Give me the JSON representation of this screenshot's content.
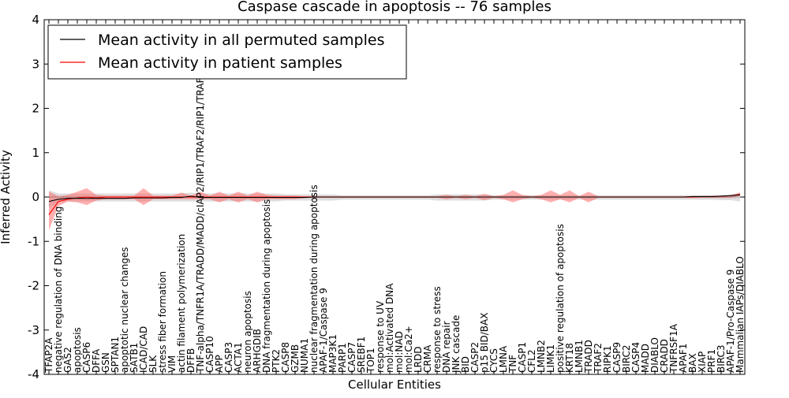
{
  "chart_data": {
    "type": "line",
    "title": "Caspase cascade in apoptosis -- 76 samples",
    "xlabel": "Cellular Entities",
    "ylabel": "Inferred Activity",
    "ylim": [
      -4,
      4
    ],
    "yticks": [
      -4,
      -3,
      -2,
      -1,
      0,
      1,
      2,
      3,
      4
    ],
    "legend": {
      "position": "top-left",
      "entries": [
        {
          "label": "Mean activity in all permuted samples",
          "color": "#000000"
        },
        {
          "label": "Mean activity in patient samples",
          "color": "#ff0000"
        }
      ]
    },
    "categories": [
      "TFAP2A",
      "negative regulation of DNA binding",
      "GAS2",
      "apoptosis",
      "CASP6",
      "DFFA",
      "GSN",
      "SPTAN1",
      "apoptotic nuclear changes",
      "SATB1",
      "ICAD/CAD",
      "SLK",
      "stress fiber formation",
      "VIM",
      "actin filament polymerization",
      "DFFB",
      "TNF-alpha/TNFR1A/TRADD/MADD/cIAP2/RIP1/TRAF2/RIP1/TRAF2/RAIDD",
      "CASP10",
      "APP",
      "CASP3",
      "ACTA1",
      "neuron apoptosis",
      "ARHGDIB",
      "DNA fragmentation during apoptosis",
      "PTK2",
      "CASP8",
      "GZMB",
      "NUMA1",
      "nuclear fragmentation during apoptosis",
      "APAF-1/Caspase 9",
      "MAP3K1",
      "PARP1",
      "CASP7",
      "SREBF1",
      "TOP1",
      "response to UV",
      "mol:Activated DNA",
      "mol:NAD",
      "mol:Ca2+",
      "LRDD",
      "CRMA",
      "response to stress",
      "DNA repair",
      "JNK cascade",
      "BID",
      "CASP2",
      "p15 BID/BAX",
      "CYCS",
      "LMNA",
      "TNF",
      "CASP1",
      "CFL2",
      "LMNB2",
      "LIMK1",
      "positive regulation of apoptosis",
      "KRT18",
      "LMNB1",
      "TRADD",
      "TRAF2",
      "RIPK1",
      "CASP9",
      "BIRC2",
      "CASP4",
      "MADD",
      "DIABLO",
      "CRADD",
      "TNFRSF1A",
      "APAF1",
      "BAX",
      "XIAP",
      "PRF1",
      "BIRC3",
      "APAF-1/Pro-Caspase 9",
      "Mammalian IAPs/DIABLO"
    ],
    "series": [
      {
        "name": "Mean activity in all permuted samples",
        "color": "#000000",
        "values": [
          -0.1,
          -0.05,
          -0.03,
          -0.03,
          -0.03,
          -0.03,
          -0.03,
          -0.03,
          -0.03,
          -0.02,
          -0.02,
          -0.02,
          -0.02,
          -0.01,
          -0.01,
          0.02,
          -0.01,
          -0.01,
          -0.01,
          -0.01,
          -0.01,
          -0.01,
          -0.01,
          -0.01,
          -0.01,
          -0.01,
          -0.01,
          -0.01,
          0,
          0,
          0,
          0,
          0,
          0,
          0,
          0,
          0,
          0,
          0,
          0,
          0,
          0,
          0,
          0,
          0,
          0,
          0,
          0,
          0,
          0,
          0,
          0,
          0,
          0,
          0,
          0,
          0,
          0,
          0,
          0,
          0,
          0,
          0,
          0,
          0,
          0,
          0,
          0,
          0.01,
          0.01,
          0.01,
          0.02,
          0.03,
          0.05
        ],
        "band_low": [
          -0.25,
          -0.12,
          -0.1,
          -0.1,
          -0.1,
          -0.1,
          -0.1,
          -0.1,
          -0.1,
          -0.1,
          -0.1,
          -0.1,
          -0.1,
          -0.1,
          -0.1,
          -0.1,
          -0.1,
          -0.1,
          -0.1,
          -0.1,
          -0.1,
          -0.1,
          -0.1,
          -0.1,
          -0.1,
          -0.08,
          -0.08,
          -0.08,
          -0.08,
          -0.08,
          -0.08,
          -0.06,
          -0.06,
          -0.06,
          -0.06,
          -0.06,
          -0.06,
          -0.06,
          -0.06,
          -0.06,
          -0.06,
          -0.08,
          -0.08,
          -0.08,
          -0.08,
          -0.08,
          -0.08,
          -0.06,
          -0.06,
          -0.06,
          -0.06,
          -0.06,
          -0.06,
          -0.06,
          -0.06,
          -0.06,
          -0.06,
          -0.06,
          -0.06,
          -0.06,
          -0.06,
          -0.06,
          -0.06,
          -0.06,
          -0.06,
          -0.06,
          -0.06,
          -0.06,
          -0.06,
          -0.06,
          -0.06,
          -0.07,
          -0.07,
          -0.1
        ],
        "band_high": [
          0.15,
          0.08,
          0.08,
          0.08,
          0.08,
          0.08,
          0.08,
          0.08,
          0.08,
          0.08,
          0.08,
          0.08,
          0.08,
          0.08,
          0.08,
          0.1,
          0.08,
          0.08,
          0.08,
          0.08,
          0.08,
          0.08,
          0.08,
          0.08,
          0.08,
          0.06,
          0.06,
          0.06,
          0.06,
          0.06,
          0.06,
          0.04,
          0.04,
          0.04,
          0.04,
          0.04,
          0.04,
          0.04,
          0.04,
          0.04,
          0.04,
          0.06,
          0.06,
          0.06,
          0.06,
          0.06,
          0.06,
          0.04,
          0.04,
          0.04,
          0.04,
          0.04,
          0.04,
          0.04,
          0.04,
          0.04,
          0.04,
          0.04,
          0.04,
          0.04,
          0.04,
          0.04,
          0.04,
          0.04,
          0.04,
          0.04,
          0.04,
          0.04,
          0.04,
          0.04,
          0.04,
          0.05,
          0.06,
          0.1
        ]
      },
      {
        "name": "Mean activity in patient samples",
        "color": "#ff0000",
        "values": [
          -0.4,
          -0.1,
          -0.05,
          -0.02,
          0,
          -0.02,
          0,
          0,
          0,
          0,
          0,
          0,
          0,
          0,
          0,
          0,
          0,
          0,
          0,
          0,
          0,
          0,
          0,
          0,
          0,
          0,
          0,
          0,
          0,
          0,
          0,
          0,
          0,
          0,
          0,
          0,
          0,
          0,
          0,
          0,
          0,
          0,
          0,
          0,
          0,
          0,
          0,
          0,
          0,
          0,
          0,
          0,
          0,
          0,
          0,
          0,
          0,
          0,
          0,
          0,
          0,
          0,
          0,
          0,
          0,
          0,
          0,
          0,
          0,
          0.01,
          0.01,
          0.02,
          0.03,
          0.06
        ],
        "band_low": [
          -0.75,
          -0.2,
          -0.1,
          -0.12,
          -0.18,
          -0.08,
          -0.05,
          -0.05,
          -0.05,
          -0.05,
          -0.18,
          -0.05,
          -0.05,
          -0.05,
          -0.05,
          -0.05,
          -0.05,
          -0.05,
          -0.12,
          -0.05,
          -0.12,
          -0.05,
          -0.12,
          -0.05,
          -0.05,
          -0.05,
          -0.05,
          -0.02,
          -0.02,
          -0.02,
          -0.02,
          -0.02,
          -0.02,
          -0.02,
          -0.02,
          -0.02,
          -0.02,
          -0.02,
          -0.02,
          -0.02,
          -0.02,
          -0.02,
          -0.05,
          -0.02,
          -0.05,
          -0.02,
          -0.07,
          -0.02,
          -0.05,
          -0.12,
          -0.05,
          -0.02,
          -0.05,
          -0.12,
          -0.05,
          -0.12,
          -0.02,
          -0.12,
          -0.02,
          -0.02,
          -0.02,
          -0.02,
          -0.02,
          -0.02,
          -0.02,
          -0.02,
          -0.02,
          -0.02,
          -0.02,
          -0.02,
          -0.02,
          -0.02,
          -0.02,
          0.02
        ],
        "band_high": [
          0.12,
          0.02,
          0.05,
          0.12,
          0.2,
          0.05,
          0.03,
          0.03,
          0.03,
          0.03,
          0.2,
          0.03,
          0.03,
          0.03,
          0.1,
          0.03,
          0.12,
          0.03,
          0.12,
          0.03,
          0.12,
          0.03,
          0.12,
          0.05,
          0.03,
          0.03,
          0.03,
          0.02,
          0.02,
          0.02,
          0.02,
          0.02,
          0.02,
          0.02,
          0.02,
          0.02,
          0.02,
          0.02,
          0.02,
          0.02,
          0.02,
          0.02,
          0.05,
          0.02,
          0.05,
          0.02,
          0.07,
          0.02,
          0.05,
          0.15,
          0.05,
          0.02,
          0.05,
          0.15,
          0.05,
          0.15,
          0.02,
          0.12,
          0.02,
          0.02,
          0.02,
          0.02,
          0.02,
          0.02,
          0.02,
          0.02,
          0.02,
          0.02,
          0.02,
          0.02,
          0.02,
          0.02,
          0.03,
          0.1
        ]
      }
    ]
  }
}
